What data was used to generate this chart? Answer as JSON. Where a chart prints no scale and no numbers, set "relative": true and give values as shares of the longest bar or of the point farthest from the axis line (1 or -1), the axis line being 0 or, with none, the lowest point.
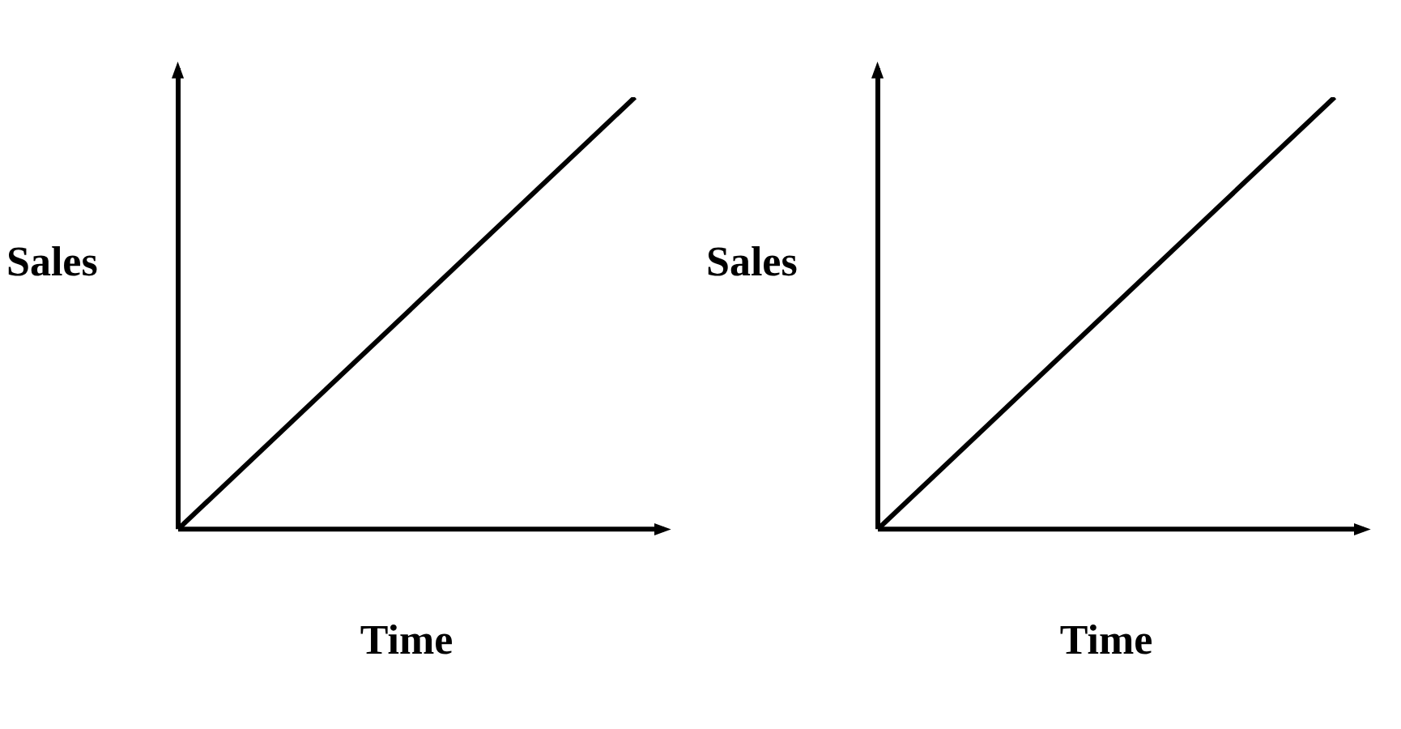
{
  "chart_data": [
    {
      "type": "line",
      "xlabel": "Time",
      "ylabel": "Sales",
      "relative": true,
      "categories": [
        null,
        null
      ],
      "values": [
        0,
        1
      ],
      "color": "#000000",
      "marker": "none"
    },
    {
      "type": "line",
      "xlabel": "Time",
      "ylabel": "Sales",
      "relative": true,
      "categories": [
        null,
        null
      ],
      "values": [
        0,
        1
      ],
      "color": "#000000",
      "marker": "none"
    }
  ]
}
